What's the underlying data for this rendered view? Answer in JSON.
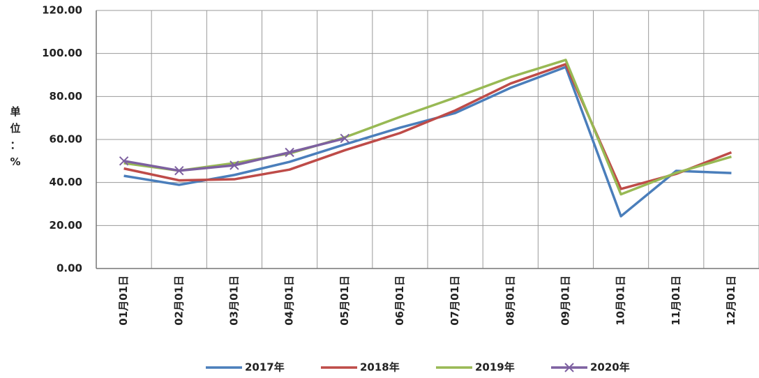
{
  "chart_data": {
    "type": "line",
    "ylabel": "单位：%",
    "categories": [
      "01月01日",
      "02月01日",
      "03月01日",
      "04月01日",
      "05月01日",
      "06月01日",
      "07月01日",
      "08月01日",
      "09月01日",
      "10月01日",
      "11月01日",
      "12月01日"
    ],
    "series": [
      {
        "name": "2017年",
        "color": "#4a7ebb",
        "values": [
          43.1,
          38.9,
          43.5,
          49.6,
          57.7,
          65.5,
          72.3,
          84,
          93.7,
          24.3,
          45.4,
          44.4
        ]
      },
      {
        "name": "2018年",
        "color": "#be4b48",
        "values": [
          46.5,
          41,
          41.5,
          46,
          55,
          63,
          73.5,
          86,
          95,
          37,
          44,
          54
        ]
      },
      {
        "name": "2019年",
        "color": "#98b954",
        "values": [
          49,
          45.5,
          49,
          53.5,
          61,
          70.5,
          79.5,
          89,
          97,
          34.5,
          44.5,
          52
        ]
      },
      {
        "name": "2020年",
        "color": "#7d60a0",
        "marker": "x",
        "values": [
          50,
          45.5,
          48,
          54,
          60.5,
          null,
          null,
          null,
          null,
          null,
          null,
          null
        ]
      }
    ],
    "ylim": [
      0,
      120
    ],
    "yticks": [
      {
        "value": 0,
        "label": "0.00"
      },
      {
        "value": 20,
        "label": "20.00"
      },
      {
        "value": 40,
        "label": "40.00"
      },
      {
        "value": 60,
        "label": "60.00"
      },
      {
        "value": 80,
        "label": "80.00"
      },
      {
        "value": 100,
        "label": "100.00"
      },
      {
        "value": 120,
        "label": "120.00"
      }
    ],
    "grid": true,
    "legend": "bottom"
  }
}
